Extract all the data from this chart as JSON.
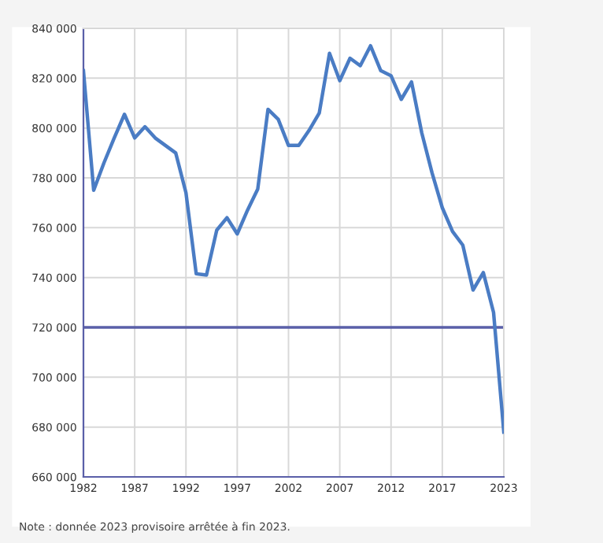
{
  "chart_data": {
    "type": "line",
    "x": [
      1982,
      1983,
      1984,
      1985,
      1986,
      1987,
      1988,
      1989,
      1990,
      1991,
      1992,
      1993,
      1994,
      1995,
      1996,
      1997,
      1998,
      1999,
      2000,
      2001,
      2002,
      2003,
      2004,
      2005,
      2006,
      2007,
      2008,
      2009,
      2010,
      2011,
      2012,
      2013,
      2014,
      2015,
      2016,
      2017,
      2018,
      2019,
      2020,
      2021,
      2022,
      2023
    ],
    "series": [
      {
        "color": "#4a7cc4",
        "values": [
          823000,
          775000,
          786000,
          796000,
          805500,
          796000,
          800500,
          796000,
          793000,
          790000,
          774000,
          741500,
          741000,
          759000,
          764000,
          757500,
          767000,
          775500,
          807500,
          803500,
          793000,
          793000,
          799000,
          806000,
          830000,
          819000,
          828000,
          825000,
          833000,
          823000,
          821000,
          811500,
          818500,
          798000,
          782000,
          768000,
          758500,
          753000,
          735000,
          742000,
          726000,
          678000
        ]
      }
    ],
    "xlim": [
      1982,
      2023
    ],
    "xticks": [
      1982,
      1987,
      1992,
      1997,
      2002,
      2007,
      2012,
      2017,
      2023
    ],
    "ylim": [
      660000,
      840000
    ],
    "yticks": [
      {
        "value": 660000,
        "label": "660 000"
      },
      {
        "value": 680000,
        "label": "680 000"
      },
      {
        "value": 700000,
        "label": "700 000"
      },
      {
        "value": 720000,
        "label": "720 000"
      },
      {
        "value": 740000,
        "label": "740 000"
      },
      {
        "value": 760000,
        "label": "760 000"
      },
      {
        "value": 780000,
        "label": "780 000"
      },
      {
        "value": 800000,
        "label": "800 000"
      },
      {
        "value": 820000,
        "label": "820 000"
      },
      {
        "value": 840000,
        "label": "840 000"
      }
    ],
    "ref_lines": [
      {
        "axis": "y",
        "value": 720000,
        "color": "#5a5fa8"
      }
    ],
    "grid": true,
    "line_style": "solid",
    "marker": "none",
    "annotations": [
      "Note : donnée 2023 provisoire arrêtée à fin 2023."
    ]
  }
}
